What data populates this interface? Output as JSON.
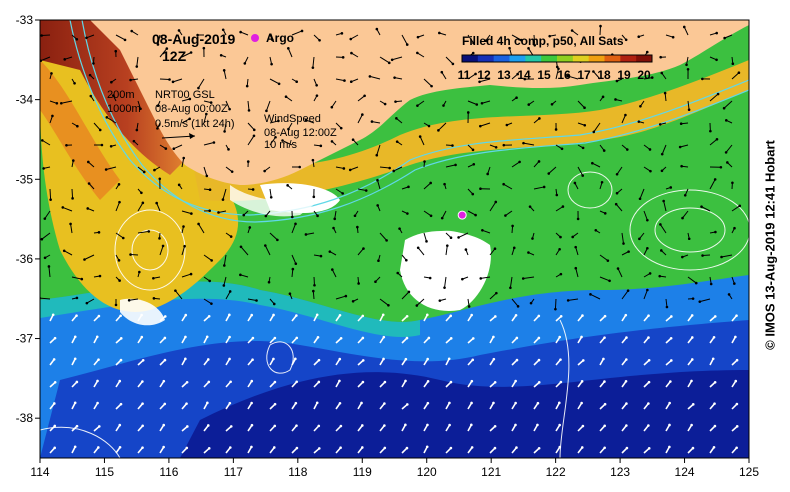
{
  "title": {
    "date": "08-Aug-2019",
    "hour": "12Z",
    "argo_label": "Argo",
    "product": "Filled 4h comp, p50, All Sats"
  },
  "map": {
    "lon_range": [
      114,
      125
    ],
    "lat_range": [
      -38.5,
      -33
    ],
    "lon_ticks": [
      "114",
      "115",
      "116",
      "117",
      "118",
      "119",
      "120",
      "121",
      "122",
      "123",
      "124",
      "125"
    ],
    "lat_ticks": [
      "-33",
      "-34",
      "-35",
      "-36",
      "-37",
      "-38"
    ]
  },
  "colorbar": {
    "labels": [
      "11",
      "12",
      "13",
      "14",
      "15",
      "16",
      "17",
      "18",
      "19",
      "20"
    ],
    "colors": [
      "#08107a",
      "#1530b8",
      "#1a60e0",
      "#1d9ff0",
      "#22c8a8",
      "#3cc83c",
      "#90d020",
      "#e0d020",
      "#f0a010",
      "#e06010",
      "#b02010",
      "#801008"
    ]
  },
  "legend": {
    "depth_200": "200m",
    "depth_1000": "1000m",
    "nrt_title": "NRT00 GSL",
    "nrt_time": "08-Aug 00:00Z",
    "current_scale": "0.5m/s (1kt 24h)",
    "wind_title": "WindSpeed",
    "wind_time": "08-Aug 12:00Z",
    "wind_scale": "10 m/s"
  },
  "argo_float": {
    "lon": 120.55,
    "lat": -35.45
  },
  "credit": "© IMOS 13-Aug-2019 12:41 Hobart",
  "colors": {
    "land": "#fbc896",
    "argo": "#e020e0",
    "contour": "#ffffff",
    "isobath": "#60d8e8"
  }
}
